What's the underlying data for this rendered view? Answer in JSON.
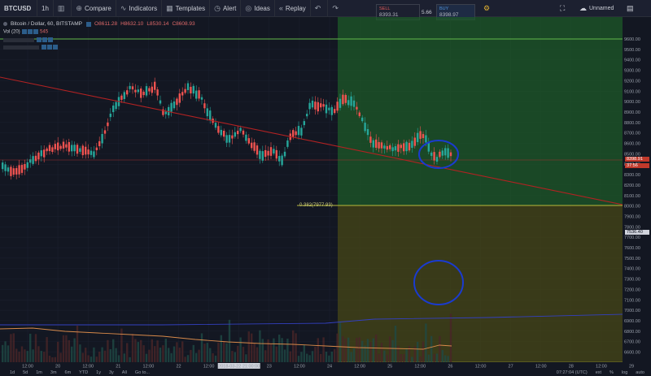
{
  "toolbar": {
    "symbol": "BTCUSD",
    "interval": "1h",
    "compare": "Compare",
    "indicators": "Indicators",
    "templates": "Templates",
    "alert": "Alert",
    "ideas": "Ideas",
    "replay": "Replay",
    "unnamed": "Unnamed"
  },
  "trade": {
    "sell_label": "SELL",
    "sell_price": "8393.31",
    "spread": "5.66",
    "buy_label": "BUY",
    "buy_price": "8398.97"
  },
  "legend": {
    "title": "Bitcoin / Dollar, 60, BITSTAMP",
    "open": "O8611.28",
    "high": "H8632.10",
    "low": "L8530.14",
    "close": "C8608.93",
    "vol_label": "Vol (20)",
    "vol_value": "545"
  },
  "price_axis": {
    "ticks": [
      "9600.00",
      "9500.00",
      "9400.00",
      "9300.00",
      "9200.00",
      "9100.00",
      "9000.00",
      "8900.00",
      "8800.00",
      "8700.00",
      "8600.00",
      "8500.00",
      "8400.00",
      "8300.00",
      "8200.00",
      "8100.00",
      "8000.00",
      "7900.00",
      "7800.00",
      "7700.00",
      "7600.00",
      "7500.00",
      "7400.00",
      "7300.00",
      "7200.00",
      "7100.00",
      "7000.00",
      "6900.00",
      "6800.00",
      "6700.00",
      "6600.00"
    ],
    "current_price": "8398.91",
    "current_sub": "37:56",
    "marker_price": "7536.40"
  },
  "fib": {
    "label": "0.382(7977.93)"
  },
  "time_axis": {
    "labels": [
      "12:00",
      "20",
      "12:00",
      "21",
      "12:00",
      "22",
      "12:00",
      "2018-03-22 21:00:00",
      "23",
      "12:00",
      "24",
      "12:00",
      "25",
      "12:00",
      "26",
      "12:00",
      "27",
      "12:00",
      "28",
      "12:00",
      "29"
    ]
  },
  "bottom": {
    "ranges": [
      "1d",
      "5d",
      "1m",
      "3m",
      "6m",
      "YTD",
      "1y",
      "3y",
      "All"
    ],
    "goto": "Go to...",
    "clock": "07:27:04 (UTC)",
    "ext": "ext",
    "pct": "%",
    "log": "log",
    "auto": "auto"
  },
  "colors": {
    "up": "#26a69a",
    "down": "#ef5350",
    "trendline": "#b22222",
    "fib_green": "#1e5a28",
    "fib_olive": "#4a4a16",
    "annotation": "#1a3bd0"
  }
}
